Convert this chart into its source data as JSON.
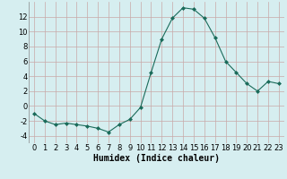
{
  "x": [
    0,
    1,
    2,
    3,
    4,
    5,
    6,
    7,
    8,
    9,
    10,
    11,
    12,
    13,
    14,
    15,
    16,
    17,
    18,
    19,
    20,
    21,
    22,
    23
  ],
  "y": [
    -1,
    -2,
    -2.5,
    -2.3,
    -2.5,
    -2.7,
    -3.0,
    -3.5,
    -2.5,
    -1.8,
    -0.2,
    4.5,
    9.0,
    11.8,
    13.2,
    13.0,
    11.8,
    9.2,
    6.0,
    4.5,
    3.0,
    2.0,
    3.3,
    3.0
  ],
  "xlabel": "Humidex (Indice chaleur)",
  "xlim": [
    -0.5,
    23.5
  ],
  "ylim": [
    -5,
    14
  ],
  "yticks": [
    -4,
    -2,
    0,
    2,
    4,
    6,
    8,
    10,
    12
  ],
  "xticks": [
    0,
    1,
    2,
    3,
    4,
    5,
    6,
    7,
    8,
    9,
    10,
    11,
    12,
    13,
    14,
    15,
    16,
    17,
    18,
    19,
    20,
    21,
    22,
    23
  ],
  "line_color": "#1a6b5a",
  "marker_color": "#1a6b5a",
  "bg_color": "#d6eef0",
  "grid_color": "#c9a8a8",
  "axis_fontsize": 7,
  "tick_fontsize": 6
}
